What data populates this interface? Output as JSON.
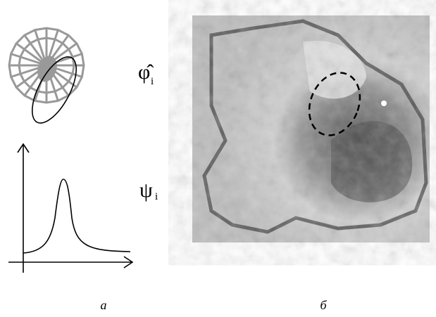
{
  "panel_a": {
    "symbol_top": "φ̂",
    "symbol_top_index": "i",
    "symbol_bottom": "ψ",
    "symbol_bottom_index": "i",
    "caption": "а"
  },
  "panel_b": {
    "caption": "б"
  }
}
